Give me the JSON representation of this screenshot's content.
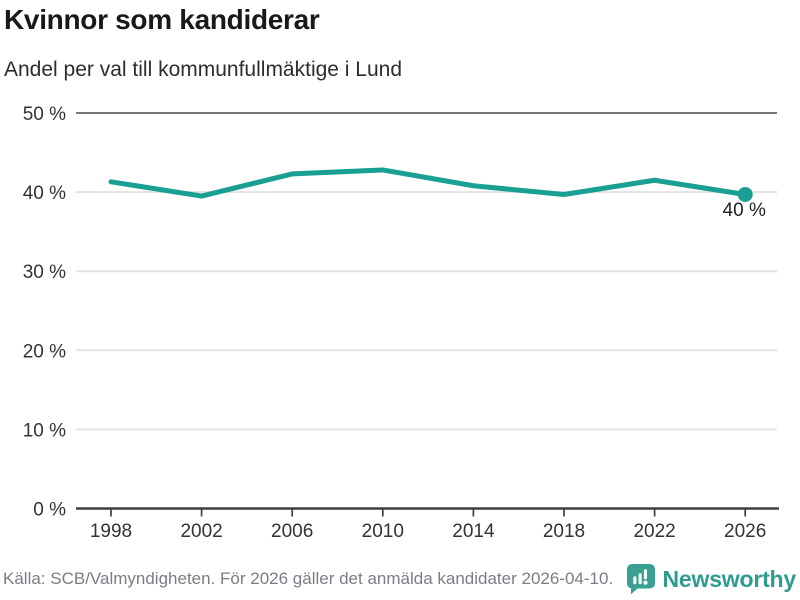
{
  "header": {
    "title": "Kvinnor som kandiderar",
    "subtitle": "Andel per val till kommunfullmäktige i Lund"
  },
  "footer": {
    "source": "Källa: SCB/Valmyndigheten. För 2026 gäller det anmälda kandidater 2026-04-10.",
    "brand": "Newsworthy",
    "brand_icon": "bar-chart-speech-bubble-icon"
  },
  "colors": {
    "line": "#19a092",
    "grid_light": "#e3e3e4",
    "grid_dark": "#77787a",
    "axis": "#3f3f41",
    "tick_text": "#333333",
    "annotation_text": "#222222",
    "muted_text": "#7c7c86",
    "brand_teal": "#2f9c90",
    "brand_icon_teal": "#3aa093"
  },
  "chart_data": {
    "type": "line",
    "title": "Kvinnor som kandiderar",
    "subtitle": "Andel per val till kommunfullmäktige i Lund",
    "x": [
      1998,
      2002,
      2006,
      2010,
      2014,
      2018,
      2022,
      2026
    ],
    "xtick_labels": [
      "1998",
      "2002",
      "2006",
      "2010",
      "2014",
      "2018",
      "2022",
      "2026"
    ],
    "values": [
      41.3,
      39.5,
      42.3,
      42.8,
      40.8,
      39.7,
      41.5,
      39.7
    ],
    "unit": "%",
    "ylim": [
      0,
      50
    ],
    "yticks": [
      0,
      10,
      20,
      30,
      40,
      50
    ],
    "ytick_labels": [
      "0 %",
      "10 %",
      "20 %",
      "30 %",
      "40 %",
      "50 %"
    ],
    "grid": "horizontal",
    "legend": false,
    "end_point_annotation": {
      "label": "40 %",
      "year": 2026,
      "value": 39.7
    }
  }
}
